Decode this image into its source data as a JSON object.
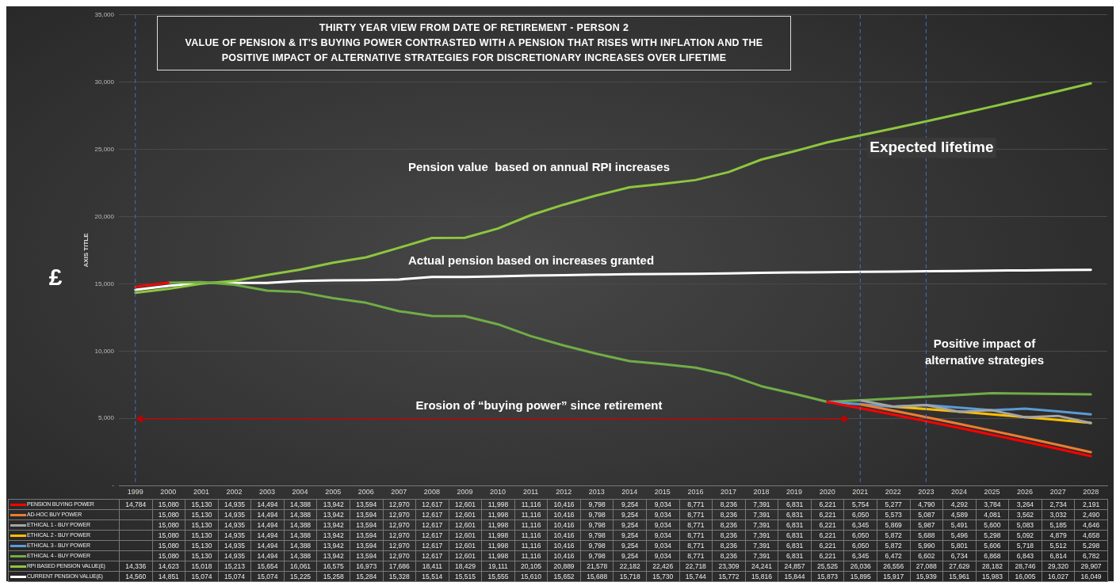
{
  "chart_data": {
    "type": "line",
    "title": "THIRTY YEAR VIEW FROM DATE OF RETIREMENT - PERSON 2",
    "subtitle": "VALUE OF PENSION & IT'S BUYING POWER CONTRASTED WITH A PENSION THAT RISES  WITH INFLATION AND THE POSITIVE IMPACT OF ALTERNATIVE STRATEGIES FOR DISCRETIONARY INCREASES OVER LIFETIME",
    "ylabel": "AXIS TITLE",
    "categories": [
      "1999",
      "2000",
      "2001",
      "2002",
      "2003",
      "2004",
      "2005",
      "2006",
      "2007",
      "2008",
      "2009",
      "2010",
      "2011",
      "2012",
      "2013",
      "2014",
      "2015",
      "2016",
      "2017",
      "2018",
      "2019",
      "2020",
      "2021",
      "2022",
      "2023",
      "2024",
      "2025",
      "2026",
      "2027",
      "2028"
    ],
    "series": [
      {
        "name": "PENSION BUYING POWER",
        "color": "#ff0000",
        "values": [
          14784,
          15080,
          null,
          null,
          null,
          null,
          null,
          null,
          null,
          null,
          null,
          null,
          null,
          null,
          null,
          null,
          null,
          null,
          null,
          null,
          null,
          6221,
          5754,
          5277,
          4790,
          4292,
          3784,
          3264,
          2734,
          2191
        ],
        "value_labels": [
          "14,784",
          "15,080",
          "15,130",
          "14,935",
          "14,494",
          "14,388",
          "13,942",
          "13,594",
          "12,970",
          "12,617",
          "12,601",
          "11,998",
          "11,116",
          "10,416",
          "9,798",
          "9,254",
          "9,034",
          "8,771",
          "8,236",
          "7,391",
          "6,831",
          "6,221",
          "5,754",
          "5,277",
          "4,790",
          "4,292",
          "3,784",
          "3,264",
          "2,734",
          "2,191"
        ]
      },
      {
        "name": "AD-HOC BUY POWER",
        "color": "#ed7d31",
        "values": [
          null,
          null,
          null,
          null,
          null,
          null,
          null,
          null,
          null,
          null,
          null,
          null,
          null,
          null,
          null,
          null,
          null,
          null,
          null,
          null,
          null,
          null,
          6050,
          5573,
          5087,
          4589,
          4081,
          3562,
          3032,
          2490
        ],
        "value_labels": [
          null,
          "15,080",
          "15,130",
          "14,935",
          "14,494",
          "14,388",
          "13,942",
          "13,594",
          "12,970",
          "12,617",
          "12,601",
          "11,998",
          "11,116",
          "10,416",
          "9,798",
          "9,254",
          "9,034",
          "8,771",
          "8,236",
          "7,391",
          "6,831",
          "6,221",
          "6,050",
          "5,573",
          "5,087",
          "4,589",
          "4,081",
          "3,562",
          "3,032",
          "2,490"
        ]
      },
      {
        "name": "ETHICAL 1 - BUY POWER",
        "color": "#a5a5a5",
        "values": [
          null,
          null,
          null,
          null,
          null,
          null,
          null,
          null,
          null,
          null,
          null,
          null,
          null,
          null,
          null,
          null,
          null,
          null,
          null,
          null,
          null,
          null,
          6345,
          5869,
          5987,
          5491,
          5600,
          5083,
          5185,
          4646
        ],
        "value_labels": [
          null,
          "15,080",
          "15,130",
          "14,935",
          "14,494",
          "14,388",
          "13,942",
          "13,594",
          "12,970",
          "12,617",
          "12,601",
          "11,998",
          "11,116",
          "10,416",
          "9,798",
          "9,254",
          "9,034",
          "8,771",
          "8,236",
          "7,391",
          "6,831",
          "6,221",
          "6,345",
          "5,869",
          "5,987",
          "5,491",
          "5,600",
          "5,083",
          "5,185",
          "4,646"
        ]
      },
      {
        "name": "ETHICAL 2 - BUY POWER",
        "color": "#ffc000",
        "values": [
          null,
          null,
          null,
          null,
          null,
          null,
          null,
          null,
          null,
          null,
          null,
          null,
          null,
          null,
          null,
          null,
          null,
          null,
          null,
          null,
          null,
          null,
          null,
          5872,
          5688,
          5496,
          5298,
          5092,
          4879,
          4658
        ],
        "value_labels": [
          null,
          "15,080",
          "15,130",
          "14,935",
          "14,494",
          "14,388",
          "13,942",
          "13,594",
          "12,970",
          "12,617",
          "12,601",
          "11,998",
          "11,116",
          "10,416",
          "9,798",
          "9,254",
          "9,034",
          "8,771",
          "8,236",
          "7,391",
          "6,831",
          "6,221",
          "6,050",
          "5,872",
          "5,688",
          "5,496",
          "5,298",
          "5,092",
          "4,879",
          "4,658"
        ]
      },
      {
        "name": "ETHICAL 3 - BUY POWER",
        "color": "#5b9bd5",
        "values": [
          null,
          null,
          null,
          null,
          null,
          null,
          null,
          null,
          null,
          null,
          null,
          null,
          null,
          null,
          null,
          null,
          null,
          null,
          null,
          null,
          null,
          6221,
          6050,
          5872,
          5990,
          5801,
          5606,
          5718,
          5512,
          5298
        ],
        "value_labels": [
          null,
          "15,080",
          "15,130",
          "14,935",
          "14,494",
          "14,388",
          "13,942",
          "13,594",
          "12,970",
          "12,617",
          "12,601",
          "11,998",
          "11,116",
          "10,416",
          "9,798",
          "9,254",
          "9,034",
          "8,771",
          "8,236",
          "7,391",
          "6,831",
          "6,221",
          "6,050",
          "5,872",
          "5,990",
          "5,801",
          "5,606",
          "5,718",
          "5,512",
          "5,298"
        ]
      },
      {
        "name": "ETHICAL 4 - BUY POWER",
        "color": "#70ad47",
        "values": [
          null,
          15080,
          15130,
          14935,
          14494,
          14388,
          13942,
          13594,
          12970,
          12617,
          12601,
          11998,
          11116,
          10416,
          9798,
          9254,
          9034,
          8771,
          8236,
          7391,
          6831,
          6221,
          6345,
          6472,
          6602,
          6734,
          6868,
          6843,
          6814,
          6782
        ],
        "value_labels": [
          null,
          "15,080",
          "15,130",
          "14,935",
          "14,494",
          "14,388",
          "13,942",
          "13,594",
          "12,970",
          "12,617",
          "12,601",
          "11,998",
          "11,116",
          "10,416",
          "9,798",
          "9,254",
          "9,034",
          "8,771",
          "8,236",
          "7,391",
          "6,831",
          "6,221",
          "6,345",
          "6,472",
          "6,602",
          "6,734",
          "6,868",
          "6,843",
          "6,814",
          "6,782"
        ]
      },
      {
        "name": "RPI BASED PENSION VALUE(£)",
        "color": "#8dc63f",
        "values": [
          14336,
          14623,
          15018,
          15213,
          15654,
          16061,
          16575,
          16973,
          17686,
          18411,
          18429,
          19111,
          20105,
          20889,
          21578,
          22182,
          22426,
          22718,
          23309,
          24241,
          24857,
          25525,
          26036,
          26556,
          27088,
          27629,
          28182,
          28746,
          29320,
          29907
        ],
        "value_labels": [
          "14,336",
          "14,623",
          "15,018",
          "15,213",
          "15,654",
          "16,061",
          "16,575",
          "16,973",
          "17,686",
          "18,411",
          "18,429",
          "19,111",
          "20,105",
          "20,889",
          "21,578",
          "22,182",
          "22,426",
          "22,718",
          "23,309",
          "24,241",
          "24,857",
          "25,525",
          "26,036",
          "26,556",
          "27,088",
          "27,629",
          "28,182",
          "28,746",
          "29,320",
          "29,907"
        ]
      },
      {
        "name": "CURRENT PENSION VALUE(£)",
        "color": "#ffffff",
        "values": [
          14560,
          14851,
          15074,
          15074,
          15074,
          15225,
          15258,
          15284,
          15328,
          15514,
          15515,
          15555,
          15610,
          15652,
          15688,
          15718,
          15730,
          15744,
          15772,
          15816,
          15844,
          15873,
          15895,
          15917,
          15939,
          15961,
          15983,
          16005,
          16027,
          16049
        ],
        "value_labels": [
          "14,560",
          "14,851",
          "15,074",
          "15,074",
          "15,074",
          "15,225",
          "15,258",
          "15,284",
          "15,328",
          "15,514",
          "15,515",
          "15,555",
          "15,610",
          "15,652",
          "15,688",
          "15,718",
          "15,730",
          "15,744",
          "15,772",
          "15,816",
          "15,844",
          "15,873",
          "15,895",
          "15,917",
          "15,939",
          "15,961",
          "15,983",
          "16,005",
          "16,027",
          "16,049"
        ]
      }
    ],
    "ylim": [
      0,
      35000
    ],
    "yticks": [
      {
        "value": 0,
        "label": "-"
      },
      {
        "value": 5000,
        "label": "5,000"
      },
      {
        "value": 10000,
        "label": "10,000"
      },
      {
        "value": 15000,
        "label": "15,000"
      },
      {
        "value": 20000,
        "label": "20,000"
      },
      {
        "value": 25000,
        "label": "25,000"
      },
      {
        "value": 30000,
        "label": "30,000"
      },
      {
        "value": 35000,
        "label": "35,000"
      }
    ],
    "grid": "y",
    "legend": "bottom",
    "marker": "none",
    "line_style": "solid",
    "ref_lines": [
      {
        "axis": "x",
        "value": "1999",
        "color": "#4472c4",
        "line_style": "dashed"
      },
      {
        "axis": "x",
        "value": "2021",
        "label": "Expected lifetime",
        "color": "#4472c4",
        "line_style": "dashed"
      },
      {
        "axis": "x",
        "value": "2023",
        "color": "#4472c4",
        "line_style": "dashed"
      }
    ],
    "annotations": [
      "£",
      "Pension value  based on annual RPI increases",
      "Actual pension based on increases granted",
      "Erosion of “buying power” since retirement",
      "Positive impact of\nalternative strategies"
    ]
  }
}
